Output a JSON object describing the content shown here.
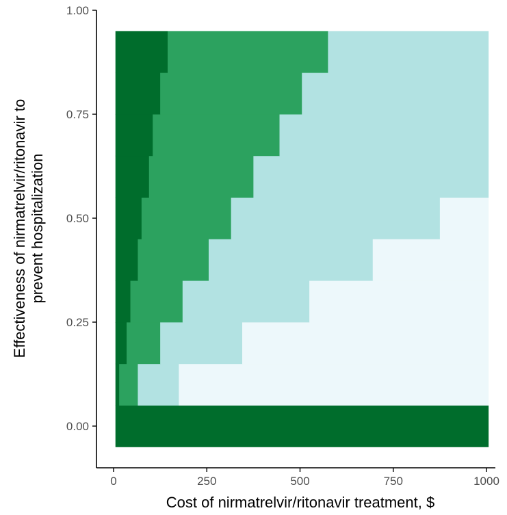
{
  "chart_data": {
    "type": "heatmap",
    "title": "",
    "xlabel": "Cost of nirmatrelvir/ritonavir treatment, $",
    "ylabel": [
      "Effectiveness of nirmatrelvir/ritonavir to",
      "prevent hospitalization"
    ],
    "x_ticks": [
      {
        "value": 0,
        "label": "0"
      },
      {
        "value": 250,
        "label": "250"
      },
      {
        "value": 500,
        "label": "500"
      },
      {
        "value": 750,
        "label": "750"
      },
      {
        "value": 1000,
        "label": "1000"
      }
    ],
    "y_ticks": [
      {
        "value": 0,
        "label": "0.00"
      },
      {
        "value": 0.25,
        "label": "0.25"
      },
      {
        "value": 0.5,
        "label": "0.50"
      },
      {
        "value": 0.75,
        "label": "0.75"
      },
      {
        "value": 1,
        "label": "1.00"
      }
    ],
    "xlim": [
      0,
      1000
    ],
    "ylim": [
      -0.05,
      1.0
    ],
    "grid": false,
    "legend": "none",
    "x_extent": [
      5,
      1005
    ],
    "y_rows": [
      -0.05,
      0.05,
      0.15,
      0.25,
      0.35,
      0.45,
      0.55,
      0.65,
      0.75,
      0.85,
      0.95
    ],
    "levels": [
      {
        "level": 0,
        "color": "#edf8fb"
      },
      {
        "level": 1,
        "color": "#b2e2e2"
      },
      {
        "level": 2,
        "color": "#2ca25f"
      },
      {
        "level": 3,
        "color": "#006d2c"
      }
    ],
    "row_boundaries": [
      {
        "effectiveness": 0.0,
        "b1": 1005,
        "b2": 1005,
        "b3": 1005
      },
      {
        "effectiveness": 0.1,
        "b1": 175,
        "b2": 65,
        "b3": 15
      },
      {
        "effectiveness": 0.2,
        "b1": 345,
        "b2": 125,
        "b3": 35
      },
      {
        "effectiveness": 0.3,
        "b1": 525,
        "b2": 185,
        "b3": 45
      },
      {
        "effectiveness": 0.4,
        "b1": 695,
        "b2": 255,
        "b3": 65
      },
      {
        "effectiveness": 0.5,
        "b1": 875,
        "b2": 315,
        "b3": 75
      },
      {
        "effectiveness": 0.6,
        "b1": 1005,
        "b2": 375,
        "b3": 95
      },
      {
        "effectiveness": 0.7,
        "b1": 1005,
        "b2": 445,
        "b3": 105
      },
      {
        "effectiveness": 0.8,
        "b1": 1005,
        "b2": 505,
        "b3": 125
      },
      {
        "effectiveness": 0.9,
        "b1": 1005,
        "b2": 575,
        "b3": 145
      }
    ]
  }
}
